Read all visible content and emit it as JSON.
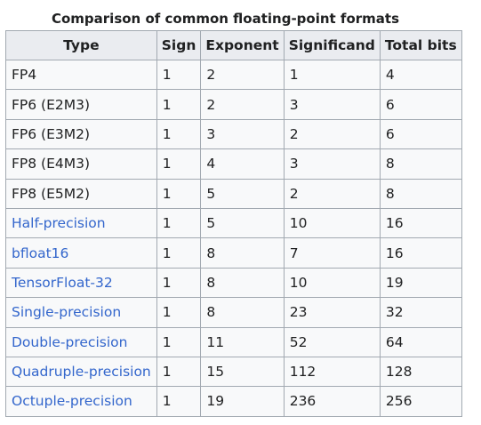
{
  "table": {
    "caption": "Comparison of common floating-point formats",
    "headers": [
      "Type",
      "Sign",
      "Exponent",
      "Significand",
      "Total bits"
    ],
    "rows": [
      {
        "type": "FP4",
        "is_link": false,
        "sign": "1",
        "exponent": "2",
        "significand": "1",
        "total": "4"
      },
      {
        "type": "FP6 (E2M3)",
        "is_link": false,
        "sign": "1",
        "exponent": "2",
        "significand": "3",
        "total": "6"
      },
      {
        "type": "FP6 (E3M2)",
        "is_link": false,
        "sign": "1",
        "exponent": "3",
        "significand": "2",
        "total": "6"
      },
      {
        "type": "FP8 (E4M3)",
        "is_link": false,
        "sign": "1",
        "exponent": "4",
        "significand": "3",
        "total": "8"
      },
      {
        "type": "FP8 (E5M2)",
        "is_link": false,
        "sign": "1",
        "exponent": "5",
        "significand": "2",
        "total": "8"
      },
      {
        "type": "Half-precision",
        "is_link": true,
        "sign": "1",
        "exponent": "5",
        "significand": "10",
        "total": "16"
      },
      {
        "type": "bfloat16",
        "is_link": true,
        "sign": "1",
        "exponent": "8",
        "significand": "7",
        "total": "16"
      },
      {
        "type": "TensorFloat-32",
        "is_link": true,
        "sign": "1",
        "exponent": "8",
        "significand": "10",
        "total": "19"
      },
      {
        "type": "Single-precision",
        "is_link": true,
        "sign": "1",
        "exponent": "8",
        "significand": "23",
        "total": "32"
      },
      {
        "type": "Double-precision",
        "is_link": true,
        "sign": "1",
        "exponent": "11",
        "significand": "52",
        "total": "64"
      },
      {
        "type": "Quadruple-precision",
        "is_link": true,
        "sign": "1",
        "exponent": "15",
        "significand": "112",
        "total": "128"
      },
      {
        "type": "Octuple-precision",
        "is_link": true,
        "sign": "1",
        "exponent": "19",
        "significand": "236",
        "total": "256"
      }
    ]
  },
  "colors": {
    "link": "#3366cc",
    "text": "#202122",
    "header_bg": "#eaecf0",
    "cell_bg": "#f8f9fa",
    "border": "#a2a9b1"
  }
}
